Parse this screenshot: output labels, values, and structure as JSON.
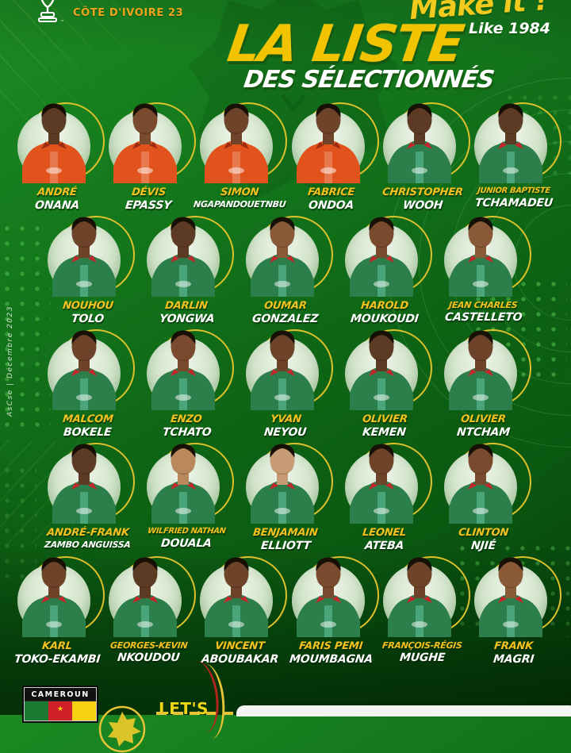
{
  "header": {
    "tournament": "CÔTE D'IVOIRE 23",
    "slogan_line1": "Make it !",
    "slogan_line2": "Like 1984"
  },
  "title": {
    "line1": "LA LISTE",
    "line2": "DES SÉLECTIONNÉS"
  },
  "watermark": "AsCse | Décembre 2023",
  "colors": {
    "kit_orange": "#e2521c",
    "kit_green": "#2c7e4b",
    "collar_red": "#c3272b",
    "collar_orange": "#9e2c12",
    "accent_yellow": "#f2c400",
    "ring_yellow": "#dfc12c",
    "background_green": "#0d6114"
  },
  "rows": [
    {
      "players": [
        {
          "first": "ANDRÉ",
          "last": "ONANA",
          "kit": "orange",
          "tone": "#5d3a24"
        },
        {
          "first": "DÉVIS",
          "last": "EPASSY",
          "kit": "orange",
          "tone": "#7a4a2e"
        },
        {
          "first": "SIMON",
          "last": "NGAPANDOUETNBU",
          "kit": "orange",
          "tone": "#6d432a"
        },
        {
          "first": "FABRICE",
          "last": "ONDOA",
          "kit": "orange",
          "tone": "#6d432a"
        },
        {
          "first": "CHRISTOPHER",
          "last": "WOOH",
          "kit": "green",
          "tone": "#5d3a24"
        },
        {
          "first": "JUNIOR BAPTISTE",
          "last": "TCHAMADEU",
          "kit": "green",
          "tone": "#5d3a24"
        }
      ]
    },
    {
      "players": [
        {
          "first": "NOUHOU",
          "last": "TOLO",
          "kit": "green",
          "tone": "#6d432a"
        },
        {
          "first": "DARLIN",
          "last": "YONGWA",
          "kit": "green",
          "tone": "#5d3a24"
        },
        {
          "first": "OUMAR",
          "last": "GONZALEZ",
          "kit": "green",
          "tone": "#8a5a38"
        },
        {
          "first": "HAROLD",
          "last": "MOUKOUDI",
          "kit": "green",
          "tone": "#7a4a2e"
        },
        {
          "first": "JEAN CHARLES",
          "last": "CASTELLETO",
          "kit": "green",
          "tone": "#8a5a38"
        }
      ]
    },
    {
      "players": [
        {
          "first": "MALCOM",
          "last": "BOKELE",
          "kit": "green",
          "tone": "#6d432a"
        },
        {
          "first": "ENZO",
          "last": "TCHATO",
          "kit": "green",
          "tone": "#7a4a2e"
        },
        {
          "first": "YVAN",
          "last": "NEYOU",
          "kit": "green",
          "tone": "#6d432a"
        },
        {
          "first": "OLIVIER",
          "last": "KEMEN",
          "kit": "green",
          "tone": "#5d3a24"
        },
        {
          "first": "OLIVIER",
          "last": "NTCHAM",
          "kit": "green",
          "tone": "#6d432a"
        }
      ]
    },
    {
      "players": [
        {
          "first": "ANDRÉ-FRANK",
          "last": "ZAMBO ANGUISSA",
          "kit": "green",
          "tone": "#5d3a24"
        },
        {
          "first": "WILFRIED NATHAN",
          "last": "DOUALA",
          "kit": "green",
          "tone": "#b9895c"
        },
        {
          "first": "BENJAMAIN",
          "last": "ELLIOTT",
          "kit": "green",
          "tone": "#c79b74"
        },
        {
          "first": "LEONEL",
          "last": "ATEBA",
          "kit": "green",
          "tone": "#6d432a"
        },
        {
          "first": "CLINTON",
          "last": "NJIÉ",
          "kit": "green",
          "tone": "#7a4a2e"
        }
      ]
    },
    {
      "players": [
        {
          "first": "KARL",
          "last": "TOKO-EKAMBI",
          "kit": "green",
          "tone": "#6d432a"
        },
        {
          "first": "GEORGES-KEVIN",
          "last": "NKOUDOU",
          "kit": "green",
          "tone": "#5d3a24"
        },
        {
          "first": "VINCENT",
          "last": "ABOUBAKAR",
          "kit": "green",
          "tone": "#6d432a"
        },
        {
          "first": "FARIS PEMI",
          "last": "MOUMBAGNA",
          "kit": "green",
          "tone": "#7a4a2e"
        },
        {
          "first": "FRANÇOIS-RÉGIS",
          "last": "MUGHE",
          "kit": "green",
          "tone": "#6d432a"
        },
        {
          "first": "FRANK",
          "last": "MAGRI",
          "kit": "green",
          "tone": "#8a5a38"
        }
      ]
    }
  ],
  "footer": {
    "country_badge": "CAMEROUN",
    "lets_text": "LET'S",
    "flag_colors": [
      "#1d7a33",
      "#cf2027",
      "#f7d012"
    ],
    "flag_star": "★"
  }
}
